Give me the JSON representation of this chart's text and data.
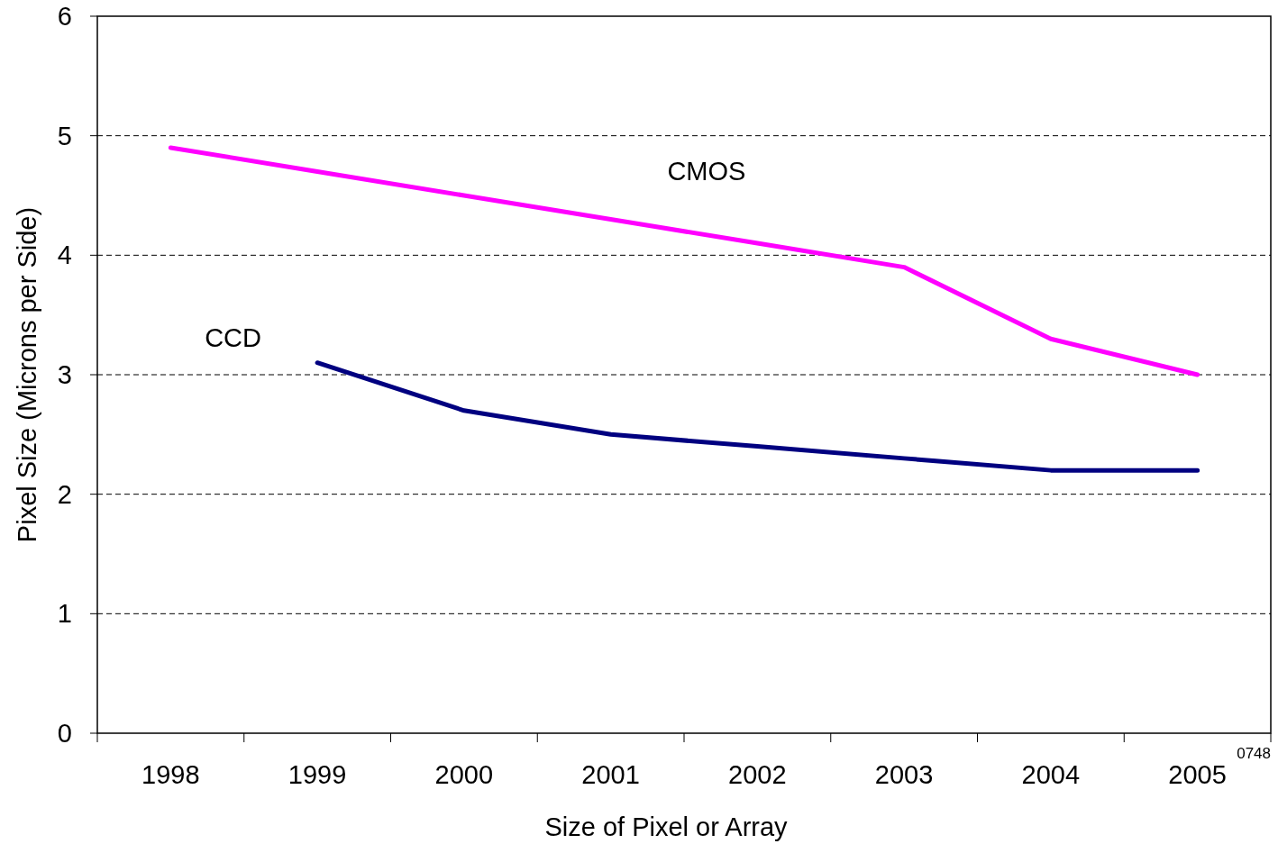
{
  "chart_data": {
    "type": "line",
    "xlabel": "Size of Pixel or Array",
    "ylabel": "Pixel Size (Microns per Side)",
    "categories": [
      "1998",
      "1999",
      "2000",
      "2001",
      "2002",
      "2003",
      "2004",
      "2005"
    ],
    "series": [
      {
        "name": "CMOS",
        "color": "#ff00ff",
        "values": [
          4.9,
          4.7,
          4.5,
          4.3,
          4.1,
          3.9,
          3.3,
          3.0
        ]
      },
      {
        "name": "CCD",
        "color": "#000080",
        "values": [
          null,
          3.1,
          2.7,
          2.5,
          2.4,
          2.3,
          2.2,
          2.2
        ]
      }
    ],
    "ylim": [
      0,
      6
    ],
    "yticks": [
      0,
      1,
      2,
      3,
      4,
      5,
      6
    ],
    "grid": "y",
    "marker": "none",
    "line_style": "solid",
    "annotations": [
      "0748"
    ]
  }
}
